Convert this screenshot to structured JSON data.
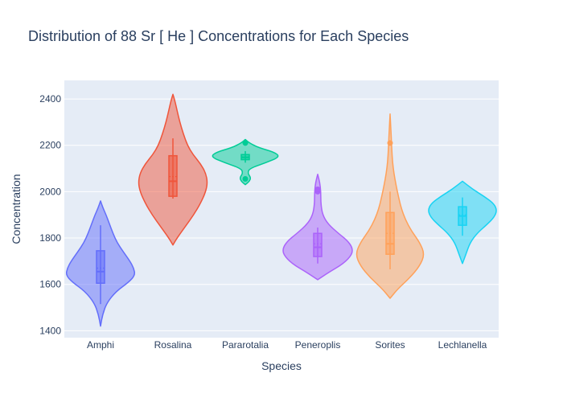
{
  "chart_data": {
    "type": "violin",
    "title": "Distribution of 88  Sr  [ He ]  Concentrations for Each Species",
    "xlabel": "Species",
    "ylabel": "Concentration",
    "ylim": [
      1370,
      2480
    ],
    "yticks": [
      1400,
      1600,
      1800,
      2000,
      2200,
      2400
    ],
    "grid": true,
    "legend": "none",
    "background": "#e5ecf6",
    "series": [
      {
        "name": "Amphi",
        "color": "#636efa",
        "range": [
          1420,
          1960
        ],
        "density": [
          [
            1420,
            0.0
          ],
          [
            1470,
            0.06
          ],
          [
            1520,
            0.18
          ],
          [
            1570,
            0.45
          ],
          [
            1610,
            0.82
          ],
          [
            1640,
            1.0
          ],
          [
            1670,
            0.96
          ],
          [
            1700,
            0.85
          ],
          [
            1740,
            0.66
          ],
          [
            1780,
            0.48
          ],
          [
            1820,
            0.36
          ],
          [
            1860,
            0.26
          ],
          [
            1900,
            0.16
          ],
          [
            1930,
            0.07
          ],
          [
            1960,
            0.0
          ]
        ],
        "box": {
          "whisker_low": 1515,
          "q1": 1605,
          "median": 1655,
          "q3": 1745,
          "whisker_high": 1855,
          "mean": 1670
        },
        "outliers": []
      },
      {
        "name": "Rosalina",
        "color": "#ef553b",
        "range": [
          1770,
          2420
        ],
        "density": [
          [
            1770,
            0.0
          ],
          [
            1800,
            0.12
          ],
          [
            1850,
            0.36
          ],
          [
            1900,
            0.6
          ],
          [
            1950,
            0.8
          ],
          [
            2000,
            0.95
          ],
          [
            2040,
            1.0
          ],
          [
            2080,
            0.95
          ],
          [
            2120,
            0.8
          ],
          [
            2160,
            0.58
          ],
          [
            2200,
            0.42
          ],
          [
            2250,
            0.3
          ],
          [
            2300,
            0.2
          ],
          [
            2350,
            0.12
          ],
          [
            2390,
            0.06
          ],
          [
            2420,
            0.0
          ]
        ],
        "box": {
          "whisker_low": 1970,
          "q1": 1980,
          "median": 2045,
          "q3": 2155,
          "whisker_high": 2230,
          "mean": 2065
        },
        "outliers": []
      },
      {
        "name": "Pararotalia",
        "color": "#00cc96",
        "range": [
          2030,
          2225
        ],
        "density": [
          [
            2030,
            0.0
          ],
          [
            2045,
            0.12
          ],
          [
            2060,
            0.16
          ],
          [
            2080,
            0.07
          ],
          [
            2100,
            0.12
          ],
          [
            2125,
            0.6
          ],
          [
            2150,
            1.0
          ],
          [
            2170,
            0.85
          ],
          [
            2190,
            0.38
          ],
          [
            2210,
            0.12
          ],
          [
            2225,
            0.0
          ]
        ],
        "box": {
          "whisker_low": 2125,
          "q1": 2138,
          "median": 2148,
          "q3": 2160,
          "whisker_high": 2175,
          "mean": 2150
        },
        "outliers": [
          2055,
          2210
        ]
      },
      {
        "name": "Peneroplis",
        "color": "#ab63fa",
        "range": [
          1620,
          2075
        ],
        "density": [
          [
            1620,
            0.0
          ],
          [
            1650,
            0.3
          ],
          [
            1690,
            0.75
          ],
          [
            1730,
            1.0
          ],
          [
            1760,
            1.0
          ],
          [
            1790,
            0.85
          ],
          [
            1820,
            0.6
          ],
          [
            1860,
            0.3
          ],
          [
            1900,
            0.14
          ],
          [
            1950,
            0.09
          ],
          [
            2000,
            0.09
          ],
          [
            2040,
            0.06
          ],
          [
            2075,
            0.0
          ]
        ],
        "box": {
          "whisker_low": 1690,
          "q1": 1720,
          "median": 1760,
          "q3": 1820,
          "whisker_high": 1845,
          "mean": 1775
        },
        "outliers": [
          2000,
          2010
        ]
      },
      {
        "name": "Sorites",
        "color": "#ffa15a",
        "range": [
          1540,
          2335
        ],
        "density": [
          [
            1540,
            0.0
          ],
          [
            1580,
            0.22
          ],
          [
            1630,
            0.58
          ],
          [
            1680,
            0.86
          ],
          [
            1730,
            1.0
          ],
          [
            1780,
            0.86
          ],
          [
            1830,
            0.62
          ],
          [
            1880,
            0.44
          ],
          [
            1930,
            0.32
          ],
          [
            1980,
            0.24
          ],
          [
            2030,
            0.17
          ],
          [
            2080,
            0.11
          ],
          [
            2130,
            0.07
          ],
          [
            2180,
            0.05
          ],
          [
            2250,
            0.03
          ],
          [
            2335,
            0.0
          ]
        ],
        "box": {
          "whisker_low": 1665,
          "q1": 1730,
          "median": 1775,
          "q3": 1910,
          "whisker_high": 2000,
          "mean": 1820
        },
        "outliers": [
          2210
        ]
      },
      {
        "name": "Lechlanella",
        "color": "#19d3f3",
        "range": [
          1690,
          2045
        ],
        "density": [
          [
            1690,
            0.0
          ],
          [
            1730,
            0.1
          ],
          [
            1780,
            0.22
          ],
          [
            1820,
            0.42
          ],
          [
            1860,
            0.72
          ],
          [
            1890,
            0.92
          ],
          [
            1920,
            1.0
          ],
          [
            1950,
            0.9
          ],
          [
            1980,
            0.62
          ],
          [
            2010,
            0.3
          ],
          [
            2045,
            0.0
          ]
        ],
        "box": {
          "whisker_low": 1810,
          "q1": 1855,
          "median": 1895,
          "q3": 1935,
          "whisker_high": 1975,
          "mean": 1900
        },
        "outliers": []
      }
    ]
  }
}
